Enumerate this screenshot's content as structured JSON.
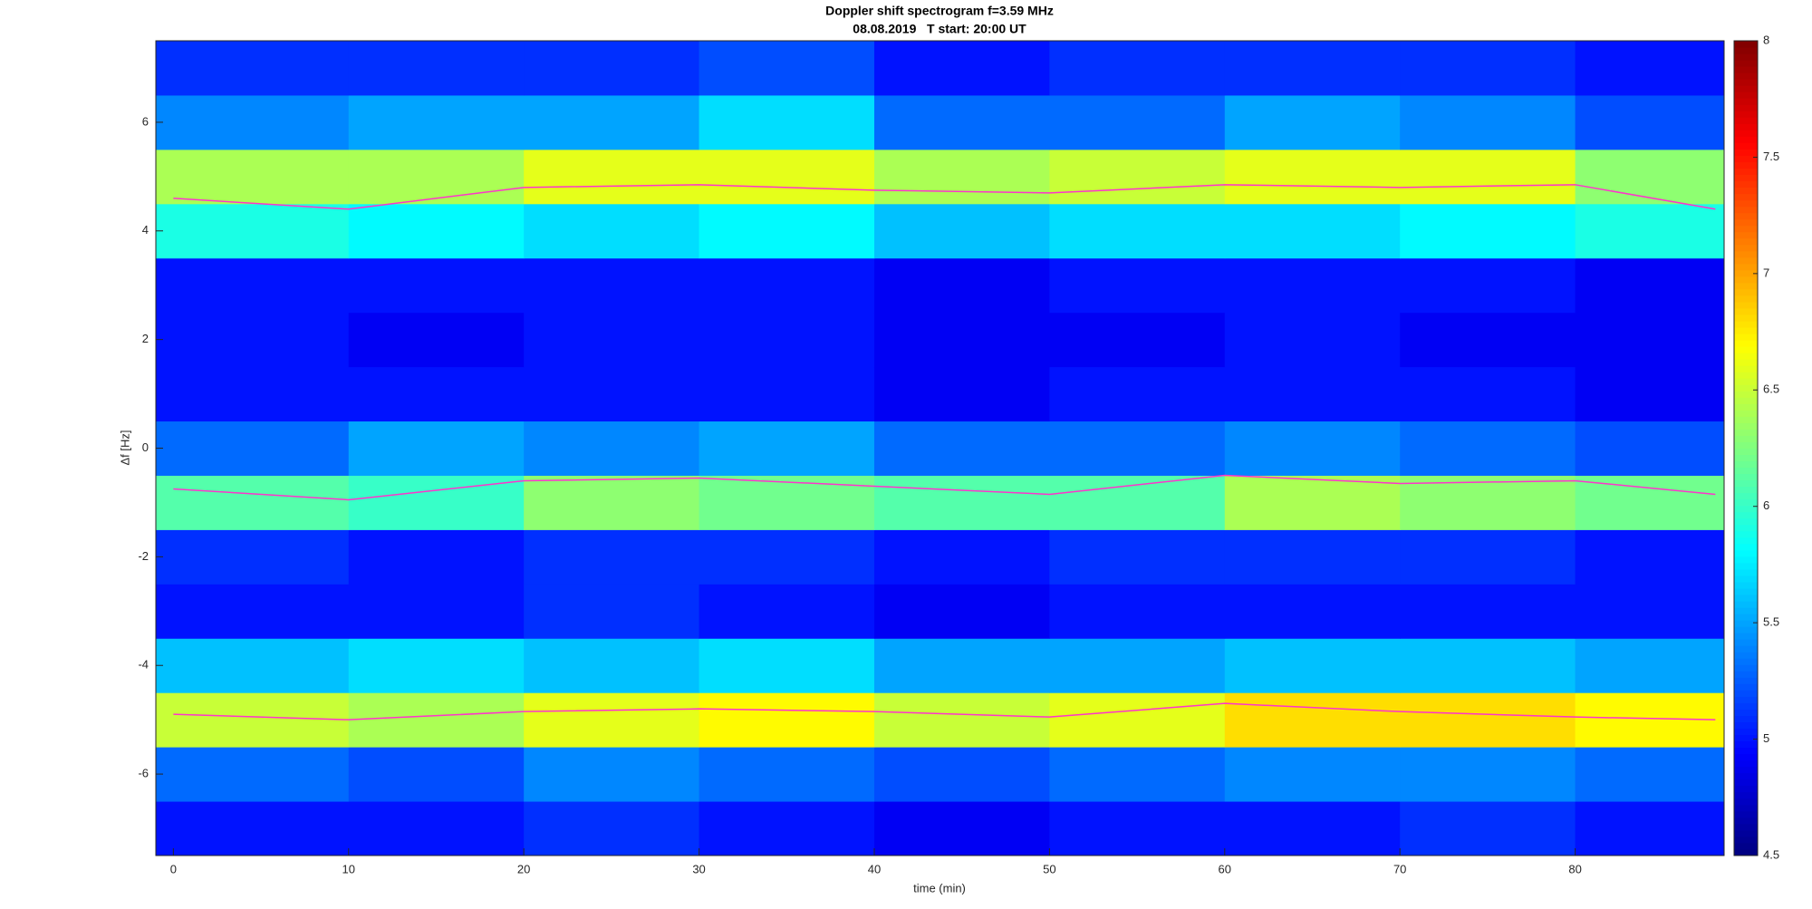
{
  "chart_data": {
    "type": "heatmap",
    "title": "Doppler shift spectrogram f=3.59 MHz",
    "subtitle": "08.08.2019   T start: 20:00 UT",
    "xlabel": "time (min)",
    "ylabel": "Δf [Hz]",
    "xlim": [
      -1,
      88.5
    ],
    "ylim": [
      -7.5,
      7.5
    ],
    "xticks": [
      0,
      10,
      20,
      30,
      40,
      50,
      60,
      70,
      80
    ],
    "yticks": [
      -6,
      -4,
      -2,
      0,
      2,
      4,
      6
    ],
    "colormap": "jet",
    "clim": [
      4.5,
      8
    ],
    "cticks": [
      4.5,
      5,
      5.5,
      6,
      6.5,
      7,
      7.5,
      8
    ],
    "x_bins": [
      -1,
      10,
      20,
      30,
      40,
      50,
      60,
      70,
      80,
      88.5
    ],
    "y_bins": [
      -7.5,
      -6.5,
      -5.5,
      -4.5,
      -3.5,
      -2.5,
      -1.5,
      -0.5,
      0.5,
      1.5,
      2.5,
      3.5,
      4.5,
      5.5,
      6.5,
      7.5
    ],
    "z": [
      [
        5.0,
        5.0,
        5.1,
        5.0,
        4.9,
        5.0,
        5.0,
        5.1,
        5.0
      ],
      [
        5.3,
        5.2,
        5.4,
        5.3,
        5.2,
        5.3,
        5.4,
        5.4,
        5.3
      ],
      [
        6.5,
        6.4,
        6.6,
        6.7,
        6.5,
        6.6,
        6.8,
        6.8,
        6.7
      ],
      [
        5.6,
        5.7,
        5.6,
        5.7,
        5.5,
        5.5,
        5.6,
        5.6,
        5.5
      ],
      [
        5.0,
        5.0,
        5.1,
        5.0,
        4.9,
        5.0,
        5.0,
        5.0,
        5.0
      ],
      [
        5.1,
        5.0,
        5.1,
        5.1,
        5.0,
        5.1,
        5.1,
        5.1,
        5.0
      ],
      [
        6.1,
        6.0,
        6.3,
        6.2,
        6.1,
        6.1,
        6.4,
        6.3,
        6.2
      ],
      [
        5.3,
        5.5,
        5.4,
        5.5,
        5.3,
        5.3,
        5.4,
        5.3,
        5.2
      ],
      [
        5.0,
        5.0,
        5.0,
        5.0,
        4.9,
        5.0,
        5.0,
        5.0,
        4.9
      ],
      [
        5.0,
        4.9,
        5.0,
        5.0,
        4.9,
        4.9,
        5.0,
        4.9,
        4.9
      ],
      [
        5.0,
        5.0,
        5.0,
        5.0,
        4.9,
        5.0,
        5.0,
        5.0,
        4.9
      ],
      [
        5.9,
        5.8,
        5.7,
        5.8,
        5.6,
        5.7,
        5.7,
        5.8,
        5.9
      ],
      [
        6.4,
        6.4,
        6.6,
        6.6,
        6.4,
        6.5,
        6.6,
        6.6,
        6.3
      ],
      [
        5.4,
        5.5,
        5.5,
        5.7,
        5.3,
        5.3,
        5.5,
        5.4,
        5.2
      ],
      [
        5.1,
        5.1,
        5.1,
        5.2,
        5.0,
        5.1,
        5.1,
        5.1,
        5.0
      ]
    ],
    "x": [
      0,
      10,
      20,
      30,
      40,
      50,
      60,
      70,
      80,
      88
    ],
    "series": [
      {
        "color": "#ff33cc",
        "values": [
          4.6,
          4.4,
          4.8,
          4.85,
          4.75,
          4.7,
          4.85,
          4.8,
          4.85,
          4.4
        ]
      },
      {
        "color": "#ff33cc",
        "values": [
          -0.75,
          -0.95,
          -0.6,
          -0.55,
          -0.7,
          -0.85,
          -0.5,
          -0.65,
          -0.6,
          -0.85
        ]
      },
      {
        "color": "#ff33cc",
        "values": [
          -4.9,
          -5.0,
          -4.85,
          -4.8,
          -4.85,
          -4.95,
          -4.7,
          -4.85,
          -4.95,
          -5.0
        ]
      }
    ]
  }
}
